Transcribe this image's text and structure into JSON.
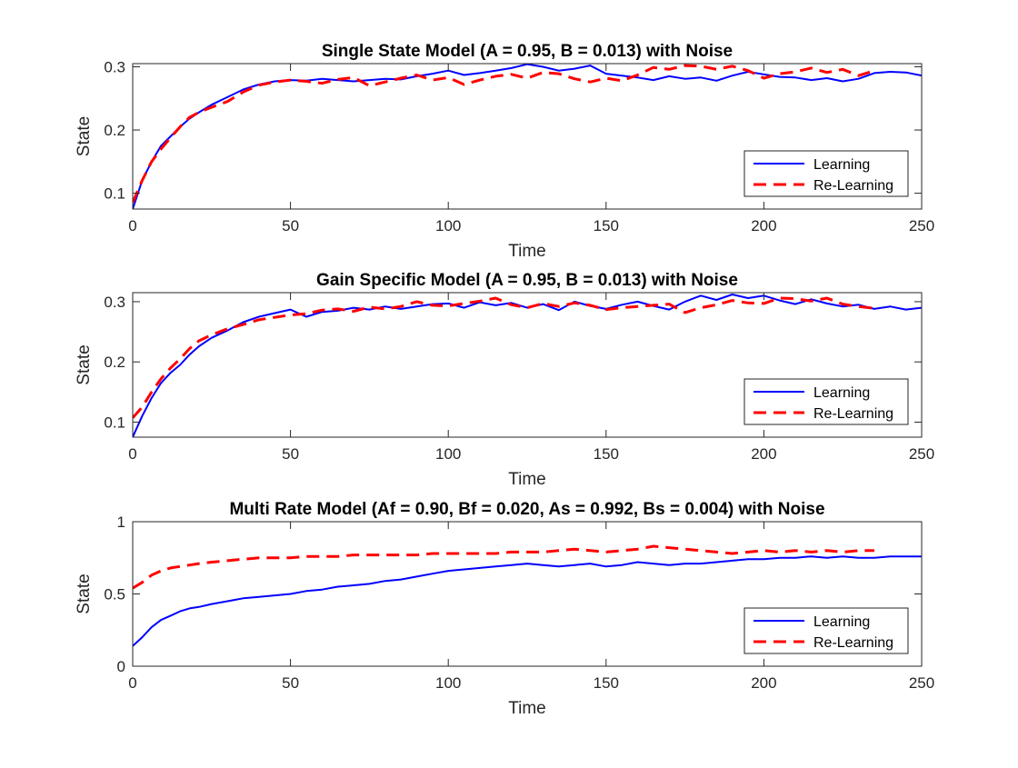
{
  "chart_data": [
    {
      "type": "line",
      "title": "Single State Model (A = 0.95, B = 0.013) with Noise",
      "xlabel": "Time",
      "ylabel": "State",
      "xlim": [
        0,
        250
      ],
      "ylim": [
        0.075,
        0.305
      ],
      "xticks": [
        0,
        50,
        100,
        150,
        200,
        250
      ],
      "yticks": [
        0.1,
        0.2,
        0.3
      ],
      "ytick_labels": [
        "0.1",
        "0.2",
        "0.3"
      ],
      "legend": "bottom-right",
      "series": [
        {
          "name": "Learning",
          "color": "#0000ff",
          "dash": "solid",
          "x": [
            0,
            3,
            6,
            9,
            12,
            15,
            18,
            21,
            25,
            30,
            35,
            40,
            45,
            50,
            55,
            60,
            65,
            70,
            75,
            80,
            85,
            90,
            95,
            100,
            105,
            110,
            115,
            120,
            125,
            130,
            135,
            140,
            145,
            150,
            155,
            160,
            165,
            170,
            175,
            180,
            185,
            190,
            195,
            200,
            205,
            210,
            215,
            220,
            225,
            230,
            235,
            240,
            245,
            250
          ],
          "y": [
            0.075,
            0.12,
            0.15,
            0.175,
            0.19,
            0.205,
            0.218,
            0.228,
            0.24,
            0.252,
            0.264,
            0.272,
            0.277,
            0.279,
            0.278,
            0.281,
            0.279,
            0.277,
            0.279,
            0.281,
            0.28,
            0.285,
            0.289,
            0.294,
            0.287,
            0.29,
            0.294,
            0.298,
            0.304,
            0.3,
            0.294,
            0.297,
            0.302,
            0.289,
            0.286,
            0.283,
            0.279,
            0.285,
            0.281,
            0.283,
            0.278,
            0.286,
            0.292,
            0.288,
            0.284,
            0.283,
            0.279,
            0.282,
            0.277,
            0.281,
            0.29,
            0.292,
            0.291,
            0.286
          ]
        },
        {
          "name": "Re-Learning",
          "color": "#ff0000",
          "dash": "dashed",
          "x": [
            0,
            3,
            6,
            9,
            12,
            15,
            18,
            21,
            25,
            30,
            35,
            40,
            45,
            50,
            55,
            60,
            65,
            70,
            75,
            80,
            85,
            90,
            95,
            100,
            105,
            110,
            115,
            120,
            125,
            130,
            135,
            140,
            145,
            150,
            155,
            160,
            165,
            170,
            175,
            180,
            185,
            190,
            195,
            200,
            205,
            210,
            215,
            220,
            225,
            230,
            235
          ],
          "y": [
            0.085,
            0.12,
            0.15,
            0.17,
            0.188,
            0.205,
            0.22,
            0.228,
            0.236,
            0.245,
            0.26,
            0.271,
            0.276,
            0.279,
            0.277,
            0.274,
            0.28,
            0.283,
            0.27,
            0.276,
            0.282,
            0.287,
            0.279,
            0.283,
            0.272,
            0.279,
            0.285,
            0.288,
            0.282,
            0.291,
            0.289,
            0.281,
            0.276,
            0.282,
            0.278,
            0.287,
            0.299,
            0.296,
            0.302,
            0.301,
            0.296,
            0.301,
            0.294,
            0.282,
            0.289,
            0.292,
            0.298,
            0.291,
            0.296,
            0.286,
            0.294
          ]
        }
      ]
    },
    {
      "type": "line",
      "title": "Gain Specific Model (A = 0.95, B = 0.013) with Noise",
      "xlabel": "Time",
      "ylabel": "State",
      "xlim": [
        0,
        250
      ],
      "ylim": [
        0.075,
        0.315
      ],
      "xticks": [
        0,
        50,
        100,
        150,
        200,
        250
      ],
      "yticks": [
        0.1,
        0.2,
        0.3
      ],
      "ytick_labels": [
        "0.1",
        "0.2",
        "0.3"
      ],
      "legend": "bottom-right",
      "series": [
        {
          "name": "Learning",
          "color": "#0000ff",
          "dash": "solid",
          "x": [
            0,
            3,
            6,
            9,
            12,
            15,
            18,
            21,
            25,
            30,
            35,
            40,
            45,
            50,
            55,
            60,
            65,
            70,
            75,
            80,
            85,
            90,
            95,
            100,
            105,
            110,
            115,
            120,
            125,
            130,
            135,
            140,
            145,
            150,
            155,
            160,
            165,
            170,
            175,
            180,
            185,
            190,
            195,
            200,
            205,
            210,
            215,
            220,
            225,
            230,
            235,
            240,
            245,
            250
          ],
          "y": [
            0.075,
            0.11,
            0.14,
            0.165,
            0.182,
            0.195,
            0.212,
            0.226,
            0.24,
            0.252,
            0.266,
            0.275,
            0.281,
            0.287,
            0.275,
            0.283,
            0.285,
            0.29,
            0.287,
            0.292,
            0.288,
            0.292,
            0.296,
            0.297,
            0.29,
            0.299,
            0.294,
            0.298,
            0.29,
            0.296,
            0.286,
            0.3,
            0.293,
            0.288,
            0.295,
            0.3,
            0.293,
            0.287,
            0.3,
            0.31,
            0.303,
            0.312,
            0.306,
            0.31,
            0.302,
            0.296,
            0.304,
            0.297,
            0.292,
            0.295,
            0.288,
            0.292,
            0.287,
            0.29
          ]
        },
        {
          "name": "Re-Learning",
          "color": "#ff0000",
          "dash": "dashed",
          "x": [
            0,
            3,
            6,
            9,
            12,
            15,
            18,
            21,
            25,
            30,
            35,
            40,
            45,
            50,
            55,
            60,
            65,
            70,
            75,
            80,
            85,
            90,
            95,
            100,
            105,
            110,
            115,
            120,
            125,
            130,
            135,
            140,
            145,
            150,
            155,
            160,
            165,
            170,
            175,
            180,
            185,
            190,
            195,
            200,
            205,
            210,
            215,
            220,
            225,
            230,
            235
          ],
          "y": [
            0.107,
            0.125,
            0.15,
            0.172,
            0.19,
            0.205,
            0.222,
            0.235,
            0.245,
            0.255,
            0.262,
            0.27,
            0.274,
            0.278,
            0.28,
            0.286,
            0.288,
            0.284,
            0.291,
            0.288,
            0.292,
            0.3,
            0.294,
            0.293,
            0.297,
            0.301,
            0.306,
            0.295,
            0.29,
            0.297,
            0.292,
            0.298,
            0.294,
            0.287,
            0.29,
            0.292,
            0.294,
            0.296,
            0.282,
            0.29,
            0.295,
            0.302,
            0.298,
            0.297,
            0.306,
            0.305,
            0.301,
            0.306,
            0.296,
            0.292,
            0.289
          ]
        }
      ]
    },
    {
      "type": "line",
      "title": "Multi Rate Model (Af = 0.90, Bf = 0.020, As = 0.992, Bs = 0.004) with Noise",
      "xlabel": "Time",
      "ylabel": "State",
      "xlim": [
        0,
        250
      ],
      "ylim": [
        0,
        1
      ],
      "xticks": [
        0,
        50,
        100,
        150,
        200,
        250
      ],
      "yticks": [
        0,
        0.5,
        1
      ],
      "ytick_labels": [
        "0",
        "0.5",
        "1"
      ],
      "legend": "bottom-right",
      "series": [
        {
          "name": "Learning",
          "color": "#0000ff",
          "dash": "solid",
          "x": [
            0,
            3,
            6,
            9,
            12,
            15,
            18,
            21,
            25,
            30,
            35,
            40,
            45,
            50,
            55,
            60,
            65,
            70,
            75,
            80,
            85,
            90,
            95,
            100,
            105,
            110,
            115,
            120,
            125,
            130,
            135,
            140,
            145,
            150,
            155,
            160,
            165,
            170,
            175,
            180,
            185,
            190,
            195,
            200,
            205,
            210,
            215,
            220,
            225,
            230,
            235,
            240,
            245,
            250
          ],
          "y": [
            0.14,
            0.2,
            0.27,
            0.32,
            0.35,
            0.38,
            0.4,
            0.41,
            0.43,
            0.45,
            0.47,
            0.48,
            0.49,
            0.5,
            0.52,
            0.53,
            0.55,
            0.56,
            0.57,
            0.59,
            0.6,
            0.62,
            0.64,
            0.66,
            0.67,
            0.68,
            0.69,
            0.7,
            0.71,
            0.7,
            0.69,
            0.7,
            0.71,
            0.69,
            0.7,
            0.72,
            0.71,
            0.7,
            0.71,
            0.71,
            0.72,
            0.73,
            0.74,
            0.74,
            0.75,
            0.75,
            0.76,
            0.75,
            0.76,
            0.75,
            0.75,
            0.76,
            0.76,
            0.76
          ]
        },
        {
          "name": "Re-Learning",
          "color": "#ff0000",
          "dash": "dashed",
          "x": [
            0,
            3,
            6,
            9,
            12,
            15,
            18,
            21,
            25,
            30,
            35,
            40,
            45,
            50,
            55,
            60,
            65,
            70,
            75,
            80,
            85,
            90,
            95,
            100,
            105,
            110,
            115,
            120,
            125,
            130,
            135,
            140,
            145,
            150,
            155,
            160,
            165,
            170,
            175,
            180,
            185,
            190,
            195,
            200,
            205,
            210,
            215,
            220,
            225,
            230,
            235
          ],
          "y": [
            0.54,
            0.58,
            0.63,
            0.66,
            0.68,
            0.69,
            0.7,
            0.71,
            0.72,
            0.73,
            0.74,
            0.75,
            0.75,
            0.75,
            0.76,
            0.76,
            0.76,
            0.77,
            0.77,
            0.77,
            0.77,
            0.77,
            0.78,
            0.78,
            0.78,
            0.78,
            0.78,
            0.79,
            0.79,
            0.79,
            0.8,
            0.81,
            0.8,
            0.79,
            0.8,
            0.81,
            0.83,
            0.82,
            0.81,
            0.8,
            0.79,
            0.78,
            0.79,
            0.8,
            0.79,
            0.8,
            0.79,
            0.8,
            0.79,
            0.8,
            0.8
          ]
        }
      ]
    }
  ]
}
